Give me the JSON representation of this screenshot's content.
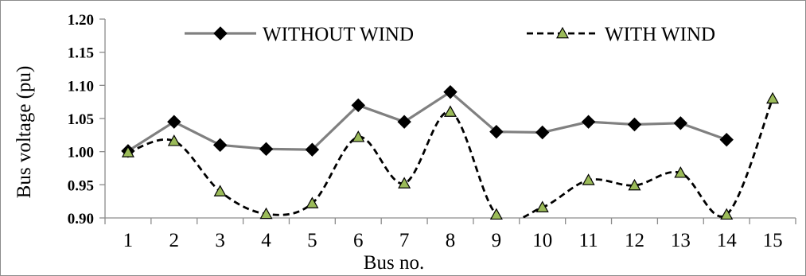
{
  "chart_data": {
    "type": "line",
    "title": "",
    "xlabel": "Bus no.",
    "ylabel": "Bus voltage (pu)",
    "ylim": [
      0.9,
      1.2
    ],
    "yticks": [
      "0.90",
      "0.95",
      "1.00",
      "1.05",
      "1.10",
      "1.15",
      "1.20"
    ],
    "categories": [
      "1",
      "2",
      "3",
      "4",
      "5",
      "6",
      "7",
      "8",
      "9",
      "10",
      "11",
      "12",
      "13",
      "14",
      "15"
    ],
    "legend_position": "top",
    "grid": false,
    "series": [
      {
        "name": "WITHOUT WIND",
        "style": "solid",
        "color": "#808080",
        "marker": "diamond",
        "marker_color": "#000000",
        "smooth": false,
        "values": [
          1.001,
          1.045,
          1.01,
          1.004,
          1.003,
          1.07,
          1.045,
          1.09,
          1.03,
          1.029,
          1.045,
          1.041,
          1.043,
          1.018,
          null
        ]
      },
      {
        "name": "WITH WIND",
        "style": "dashed",
        "color": "#000000",
        "marker": "triangle",
        "marker_color": "#9bbb59",
        "smooth": true,
        "values": [
          0.999,
          1.016,
          0.94,
          0.906,
          0.922,
          1.022,
          0.952,
          1.06,
          0.905,
          0.916,
          0.957,
          0.949,
          0.968,
          0.905,
          1.08
        ]
      }
    ]
  }
}
